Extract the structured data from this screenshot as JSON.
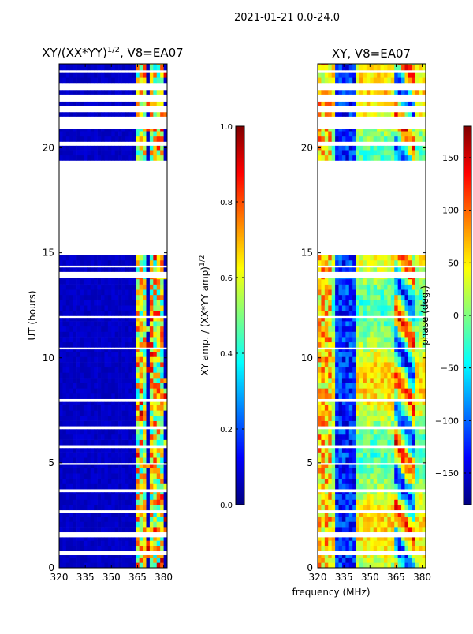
{
  "suptitle": "2021-01-21 0.0-24.0",
  "colors": {
    "jet": [
      "#00007f",
      "#0000ff",
      "#007fff",
      "#00ffff",
      "#7fff7f",
      "#ffff00",
      "#ff7f00",
      "#ff0000",
      "#7f0000"
    ],
    "frame": "#000000",
    "background": "#ffffff"
  },
  "chart_data": [
    {
      "type": "heatmap",
      "title": "XY/(XX*YY)",
      "title_sup": "1/2",
      "title_suffix": ", V8=EA07",
      "xlabel": "",
      "ylabel": "UT (hours)",
      "xlim": [
        320,
        382
      ],
      "ylim": [
        0,
        24
      ],
      "xticks": [
        320,
        335,
        350,
        365,
        380
      ],
      "yticks": [
        0,
        5,
        10,
        15,
        20
      ],
      "colorbar": {
        "label": "XY amp. / (XX*YY amp)",
        "label_sup": "1/2",
        "range": [
          0.0,
          1.0
        ],
        "ticks": [
          "0.0",
          "0.2",
          "0.4",
          "0.6",
          "0.8",
          "1.0"
        ],
        "tick_values": [
          0.0,
          0.2,
          0.4,
          0.6,
          0.8,
          1.0
        ]
      },
      "data_segments_ut": [
        [
          0.0,
          0.6
        ],
        [
          0.8,
          1.45
        ],
        [
          1.7,
          2.6
        ],
        [
          2.75,
          3.6
        ],
        [
          3.75,
          4.9
        ],
        [
          5.0,
          5.7
        ],
        [
          5.85,
          6.6
        ],
        [
          6.75,
          7.9
        ],
        [
          8.05,
          10.4
        ],
        [
          10.5,
          11.9
        ],
        [
          12.0,
          13.8
        ],
        [
          14.1,
          14.3
        ],
        [
          14.4,
          14.9
        ],
        [
          19.4,
          20.1
        ],
        [
          20.3,
          20.9
        ],
        [
          21.5,
          21.7
        ],
        [
          22.0,
          22.2
        ],
        [
          22.55,
          22.75
        ],
        [
          23.1,
          23.6
        ],
        [
          23.7,
          24.0
        ]
      ],
      "description_values": {
        "background_level": 0.05,
        "band_columns_mhz": [
          364.5,
          367.5,
          372.5,
          377.5
        ],
        "band_level_range": [
          0.35,
          0.85
        ]
      }
    },
    {
      "type": "heatmap",
      "title": "XY, V8=EA07",
      "xlabel": "frequency (MHz)",
      "ylabel": "",
      "xlim": [
        320,
        382
      ],
      "ylim": [
        0,
        24
      ],
      "xticks": [
        320,
        335,
        350,
        365,
        380
      ],
      "yticks": [
        0,
        5,
        10,
        15,
        20
      ],
      "colorbar": {
        "label": "phase (deg.)",
        "range": [
          -180,
          180
        ],
        "ticks": [
          "150",
          "100",
          "50",
          "0",
          "−50",
          "−100",
          "−150"
        ],
        "tick_values": [
          150,
          100,
          50,
          0,
          -50,
          -100,
          -150
        ]
      },
      "data_segments_ut": [
        [
          0.0,
          0.6
        ],
        [
          0.8,
          1.45
        ],
        [
          1.7,
          2.6
        ],
        [
          2.75,
          3.6
        ],
        [
          3.75,
          4.9
        ],
        [
          5.0,
          5.7
        ],
        [
          5.85,
          6.6
        ],
        [
          6.75,
          7.9
        ],
        [
          8.05,
          10.4
        ],
        [
          10.5,
          11.9
        ],
        [
          12.0,
          13.8
        ],
        [
          14.1,
          14.3
        ],
        [
          14.4,
          14.9
        ],
        [
          19.4,
          20.1
        ],
        [
          20.3,
          20.9
        ],
        [
          21.5,
          21.7
        ],
        [
          22.0,
          22.2
        ],
        [
          22.55,
          22.75
        ],
        [
          23.1,
          23.6
        ],
        [
          23.7,
          24.0
        ]
      ],
      "description_values": {
        "phase_wrap_band_mhz": [
          330,
          340
        ],
        "phase_wrap_band2_mhz": [
          362,
          375
        ]
      }
    }
  ]
}
